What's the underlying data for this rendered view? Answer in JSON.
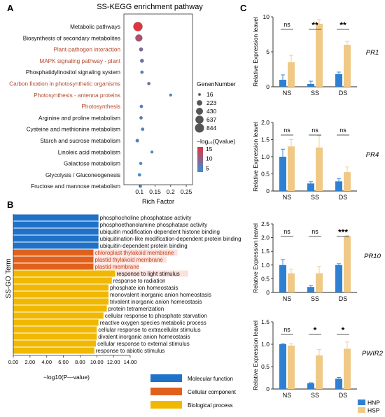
{
  "chart_data": [
    {
      "panel": "A",
      "type": "scatter",
      "title": "SS-KEGG enrichment pathway",
      "xlabel": "Rich Factor",
      "ylabel": "",
      "xticks": [
        "0.1",
        "0.15",
        "0.2",
        "0.25"
      ],
      "xlim": [
        0.05,
        0.27
      ],
      "size_legend_title": "GenenNumber",
      "size_legend": [
        16,
        223,
        430,
        637,
        844
      ],
      "color_legend_title": "−log₁₀(Qvalue)",
      "color_legend_ticks": [
        15,
        10,
        5
      ],
      "color_low": "#3a8fd6",
      "color_high": "#e0353f",
      "highlight_color": "#b5452a",
      "points": [
        {
          "term": "Metabolic pathways",
          "x": 0.095,
          "genes": 844,
          "q": 16,
          "highlight": false
        },
        {
          "term": "Biosynthesis of secondary metabolites",
          "x": 0.098,
          "genes": 430,
          "q": 12,
          "highlight": false
        },
        {
          "term": "Plant-pathogen interaction",
          "x": 0.105,
          "genes": 70,
          "q": 8,
          "highlight": true
        },
        {
          "term": "MAPK signaling pathway - plant",
          "x": 0.108,
          "genes": 60,
          "q": 7,
          "highlight": true
        },
        {
          "term": "Phosphatidylinositol signaling system",
          "x": 0.108,
          "genes": 30,
          "q": 5,
          "highlight": false
        },
        {
          "term": "Carbon fixation in photosynthetic organisms",
          "x": 0.13,
          "genes": 30,
          "q": 7,
          "highlight": true
        },
        {
          "term": "Photosynthesis - antenna proteins",
          "x": 0.2,
          "genes": 16,
          "q": 4,
          "highlight": true
        },
        {
          "term": "Photosynthesis",
          "x": 0.106,
          "genes": 30,
          "q": 5,
          "highlight": true
        },
        {
          "term": "Arginine and proline metabolism",
          "x": 0.105,
          "genes": 30,
          "q": 5,
          "highlight": false
        },
        {
          "term": "Cysteine and methionine metabolism",
          "x": 0.11,
          "genes": 30,
          "q": 5,
          "highlight": false
        },
        {
          "term": "Starch and sucrose metabolism",
          "x": 0.093,
          "genes": 40,
          "q": 4,
          "highlight": false
        },
        {
          "term": "Linoleic acid metabolism",
          "x": 0.14,
          "genes": 16,
          "q": 4,
          "highlight": false
        },
        {
          "term": "Galactose metabolism",
          "x": 0.104,
          "genes": 20,
          "q": 4,
          "highlight": false
        },
        {
          "term": "Glycolysis / Gluconeogenesis",
          "x": 0.1,
          "genes": 30,
          "q": 3,
          "highlight": false
        },
        {
          "term": "Fructose and mannose metabolism",
          "x": 0.103,
          "genes": 20,
          "q": 3,
          "highlight": false
        }
      ]
    },
    {
      "panel": "B",
      "type": "bar",
      "orientation": "horizontal",
      "ylabel": "SS-GO Term",
      "xlabel": "−log10(P—value)",
      "xticks": [
        "0.00",
        "2.00",
        "4.00",
        "6.00",
        "8.00",
        "10.00",
        "12.00",
        "14.00"
      ],
      "xlim": [
        0,
        14
      ],
      "legend": [
        {
          "name": "Molecular function",
          "color": "#1f72c8"
        },
        {
          "name": "Cellular component",
          "color": "#e0611c"
        },
        {
          "name": "Biological process",
          "color": "#f0b800"
        }
      ],
      "bars": [
        {
          "term": "phosphocholine phosphatase activity",
          "value": 10.2,
          "cat": 0
        },
        {
          "term": "phosphoethanolamine phosphatase activity",
          "value": 10.2,
          "cat": 0
        },
        {
          "term": "ubiquitin modification-dependent histone binding",
          "value": 10.2,
          "cat": 0
        },
        {
          "term": "ubiquitination-like modification-dependent protein binding",
          "value": 10.2,
          "cat": 0
        },
        {
          "term": "ubiquitin-dependent protein binding",
          "value": 10.2,
          "cat": 0
        },
        {
          "term": "chloroplast thylakoid membrane",
          "value": 9.6,
          "cat": 1
        },
        {
          "term": "plastid thylakoid membrane",
          "value": 9.6,
          "cat": 1
        },
        {
          "term": "plastid membrane",
          "value": 9.6,
          "cat": 1
        },
        {
          "term": "response to light stimulus",
          "value": 12.2,
          "cat": 2
        },
        {
          "term": "response to radiation",
          "value": 11.8,
          "cat": 2
        },
        {
          "term": "phosphate ion homeostasis",
          "value": 11.4,
          "cat": 2
        },
        {
          "term": "monovalent inorganic anion homeostasis",
          "value": 11.4,
          "cat": 2
        },
        {
          "term": "trivalent inorganic anion homeostasis",
          "value": 11.4,
          "cat": 2
        },
        {
          "term": "protein tetramerization",
          "value": 11.2,
          "cat": 2
        },
        {
          "term": "cellular response to phosphate starvation",
          "value": 10.8,
          "cat": 2
        },
        {
          "term": "reactive oxygen species metabolic process",
          "value": 10.2,
          "cat": 2
        },
        {
          "term": "cellular response to extracellular stimulus",
          "value": 10.0,
          "cat": 2
        },
        {
          "term": "divalent inorganic anion homeostasis",
          "value": 10.0,
          "cat": 2
        },
        {
          "term": "cellular response to external stimulus",
          "value": 9.9,
          "cat": 2
        },
        {
          "term": "response to abiotic stimulus",
          "value": 9.7,
          "cat": 2
        }
      ]
    },
    {
      "panel": "C",
      "type": "bar",
      "ylabel": "Relative Expression leavel",
      "categories": [
        "NS",
        "SS",
        "DS"
      ],
      "legend": [
        {
          "name": "HNP",
          "color": "#2f80d2"
        },
        {
          "name": "HSP",
          "color": "#f0c987"
        }
      ],
      "charts": [
        {
          "gene": "PR1",
          "ylim": [
            0,
            10
          ],
          "yticks": [
            0,
            5,
            10
          ],
          "hnp": [
            1.0,
            0.4,
            1.8
          ],
          "hnp_err": [
            0.7,
            0.4,
            0.3
          ],
          "hsp": [
            3.5,
            9.0,
            6.0
          ],
          "hsp_err": [
            1.0,
            0.6,
            0.5
          ],
          "sig": [
            "ns",
            "**",
            "**"
          ]
        },
        {
          "gene": "PR4",
          "ylim": [
            0,
            2.0
          ],
          "yticks": [
            0,
            0.5,
            1.0,
            1.5,
            2.0
          ],
          "hnp": [
            1.0,
            0.22,
            0.28
          ],
          "hnp_err": [
            0.22,
            0.05,
            0.08
          ],
          "hsp": [
            1.3,
            1.27,
            0.55
          ],
          "hsp_err": [
            0.2,
            0.35,
            0.15
          ],
          "sig": [
            "ns",
            "ns",
            "ns"
          ]
        },
        {
          "gene": "PR10",
          "ylim": [
            0,
            2.5
          ],
          "yticks": [
            0,
            0.5,
            1.0,
            1.5,
            2.0,
            2.5
          ],
          "hnp": [
            1.0,
            0.2,
            1.0
          ],
          "hnp_err": [
            0.2,
            0.05,
            0.05
          ],
          "hsp": [
            0.7,
            0.7,
            2.05
          ],
          "hsp_err": [
            0.15,
            0.25,
            0.02
          ],
          "sig": [
            "ns",
            "ns",
            "***"
          ]
        },
        {
          "gene": "PWIR2",
          "ylim": [
            0,
            1.5
          ],
          "yticks": [
            0,
            0.5,
            1.0,
            1.5
          ],
          "hnp": [
            1.0,
            0.13,
            0.23
          ],
          "hnp_err": [
            0.01,
            0.01,
            0.03
          ],
          "hsp": [
            0.97,
            0.75,
            0.9
          ],
          "hsp_err": [
            0.04,
            0.13,
            0.15
          ],
          "sig": [
            "ns",
            "*",
            "*"
          ]
        }
      ]
    }
  ]
}
